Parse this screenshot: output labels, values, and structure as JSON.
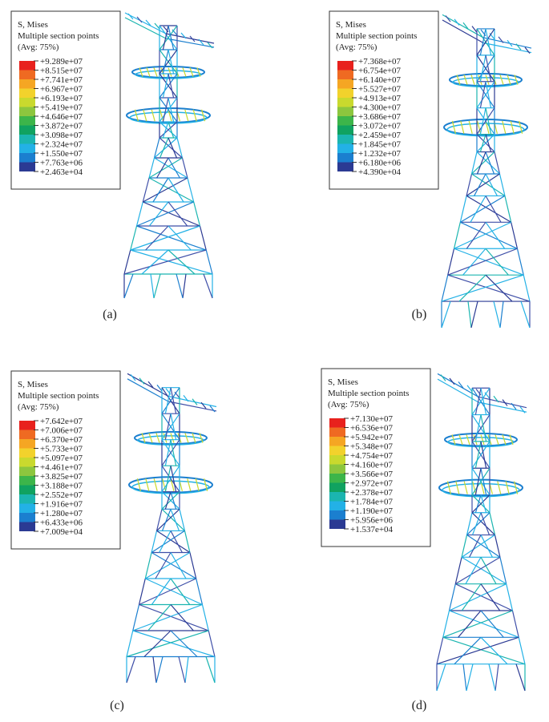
{
  "panels": [
    {
      "legend": {
        "title": "S, Mises",
        "subtitle": "Multiple section points",
        "averaging": "(Avg: 75%)",
        "values": [
          "+9.289e+07",
          "+8.515e+07",
          "+7.741e+07",
          "+6.967e+07",
          "+6.193e+07",
          "+5.419e+07",
          "+4.646e+07",
          "+3.872e+07",
          "+3.098e+07",
          "+2.324e+07",
          "+1.550e+07",
          "+7.763e+06",
          "+2.463e+04"
        ]
      },
      "caption": "(a)"
    },
    {
      "legend": {
        "title": "S, Mises",
        "subtitle": "Multiple section points",
        "averaging": "(Avg: 75%)",
        "values": [
          "+7.368e+07",
          "+6.754e+07",
          "+6.140e+07",
          "+5.527e+07",
          "+4.913e+07",
          "+4.300e+07",
          "+3.686e+07",
          "+3.072e+07",
          "+2.459e+07",
          "+1.845e+07",
          "+1.232e+07",
          "+6.180e+06",
          "+4.390e+04"
        ]
      },
      "caption": "(b)"
    },
    {
      "legend": {
        "title": "S, Mises",
        "subtitle": "Multiple section points",
        "averaging": "(Avg: 75%)",
        "values": [
          "+7.642e+07",
          "+7.006e+07",
          "+6.370e+07",
          "+5.733e+07",
          "+5.097e+07",
          "+4.461e+07",
          "+3.825e+07",
          "+3.188e+07",
          "+2.552e+07",
          "+1.916e+07",
          "+1.280e+07",
          "+6.433e+06",
          "+7.009e+04"
        ]
      },
      "caption": "(c)"
    },
    {
      "legend": {
        "title": "S, Mises",
        "subtitle": "Multiple section points",
        "averaging": "(Avg: 75%)",
        "values": [
          "+7.130e+07",
          "+6.536e+07",
          "+5.942e+07",
          "+5.348e+07",
          "+4.754e+07",
          "+4.160e+07",
          "+3.566e+07",
          "+2.972e+07",
          "+2.378e+07",
          "+1.784e+07",
          "+1.190e+07",
          "+5.956e+06",
          "+1.537e+04"
        ]
      },
      "caption": "(d)"
    }
  ],
  "scale_colors": [
    "#e8211d",
    "#ef6a22",
    "#f5a623",
    "#f2d22c",
    "#c9d92e",
    "#8cc63e",
    "#3cb54a",
    "#10a260",
    "#1bb5b0",
    "#23b1e6",
    "#1b7fcf",
    "#2b3a93"
  ]
}
